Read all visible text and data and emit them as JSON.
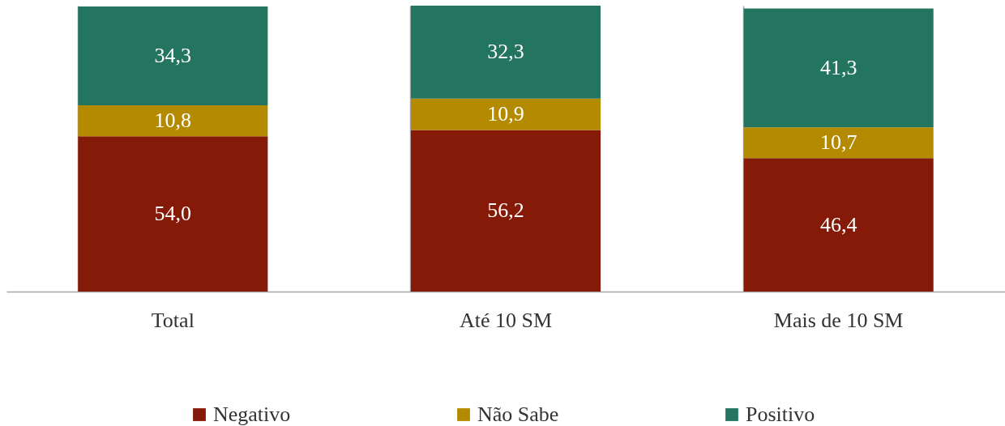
{
  "chart_data": {
    "type": "bar",
    "stacked": true,
    "categories": [
      "Total",
      "Até 10 SM",
      "Mais de 10 SM"
    ],
    "series": [
      {
        "name": "Negativo",
        "color": "#841a07",
        "values": [
          54.0,
          56.2,
          46.4
        ],
        "value_labels": [
          "54,0",
          "56,2",
          "46,4"
        ]
      },
      {
        "name": "Não Sabe",
        "color": "#b38a00",
        "values": [
          10.8,
          10.9,
          10.7
        ],
        "value_labels": [
          "10,8",
          "10,9",
          "10,7"
        ]
      },
      {
        "name": "Positivo",
        "color": "#237560",
        "values": [
          34.3,
          32.3,
          41.3
        ],
        "value_labels": [
          "34,3",
          "32,3",
          "41,3"
        ]
      }
    ],
    "tick_labels": "x",
    "grid": "x",
    "legend": "bottom"
  }
}
